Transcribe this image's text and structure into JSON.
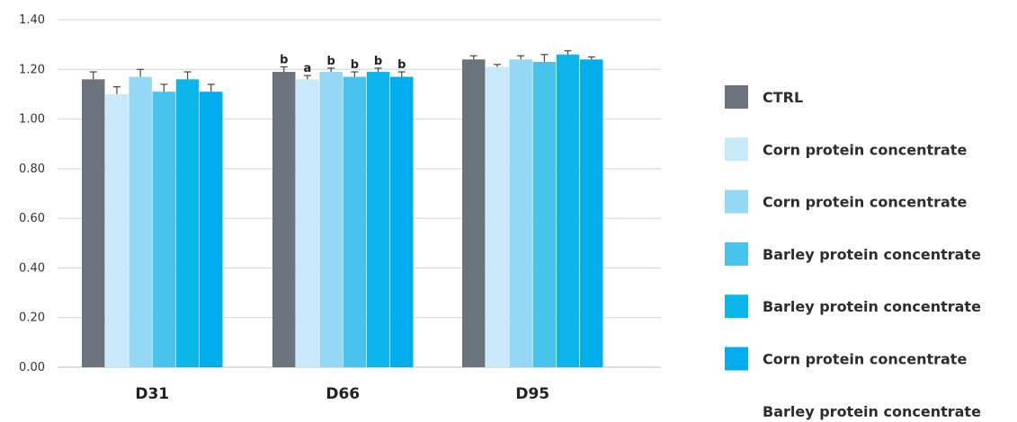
{
  "chart_data": {
    "type": "bar",
    "categories": [
      "D31",
      "D66",
      "D95"
    ],
    "ylim": [
      0,
      1.4
    ],
    "yticks": [
      "0.00",
      "0.20",
      "0.40",
      "0.60",
      "0.80",
      "1.00",
      "1.20",
      "1.40"
    ],
    "grid": true,
    "legend_position": "right",
    "series": [
      {
        "name": "CTRL",
        "color": "#6b747c",
        "values": [
          1.16,
          1.19,
          1.24
        ],
        "errors": [
          0.03,
          0.02,
          0.015
        ],
        "labels": [
          "",
          "b",
          ""
        ]
      },
      {
        "name": "Corn protein concentrate",
        "color": "#c8e9f9",
        "values": [
          1.1,
          1.16,
          1.21
        ],
        "errors": [
          0.03,
          0.015,
          0.01
        ],
        "labels": [
          "",
          "a",
          ""
        ]
      },
      {
        "name": "Corn protein concentrate",
        "color": "#94d8f5",
        "values": [
          1.17,
          1.19,
          1.24
        ],
        "errors": [
          0.03,
          0.015,
          0.015
        ],
        "labels": [
          "",
          "b",
          ""
        ]
      },
      {
        "name": "Barley protein concentrate",
        "color": "#47c3ee",
        "values": [
          1.11,
          1.17,
          1.23
        ],
        "errors": [
          0.03,
          0.02,
          0.03
        ],
        "labels": [
          "",
          "b",
          ""
        ]
      },
      {
        "name": "Barley protein concentrate",
        "color": "#0bb7ea",
        "values": [
          1.16,
          1.19,
          1.26
        ],
        "errors": [
          0.03,
          0.015,
          0.015
        ],
        "labels": [
          "",
          "b",
          ""
        ]
      },
      {
        "name": "Corn protein concentrate",
        "color": "#02aded",
        "values": [
          1.11,
          1.17,
          1.24
        ],
        "errors": [
          0.03,
          0.02,
          0.01
        ],
        "labels": [
          "",
          "b",
          ""
        ]
      }
    ],
    "extra_legend_entries": [
      {
        "name": "Barley protein concentrate",
        "color": "#ffffff"
      }
    ]
  }
}
